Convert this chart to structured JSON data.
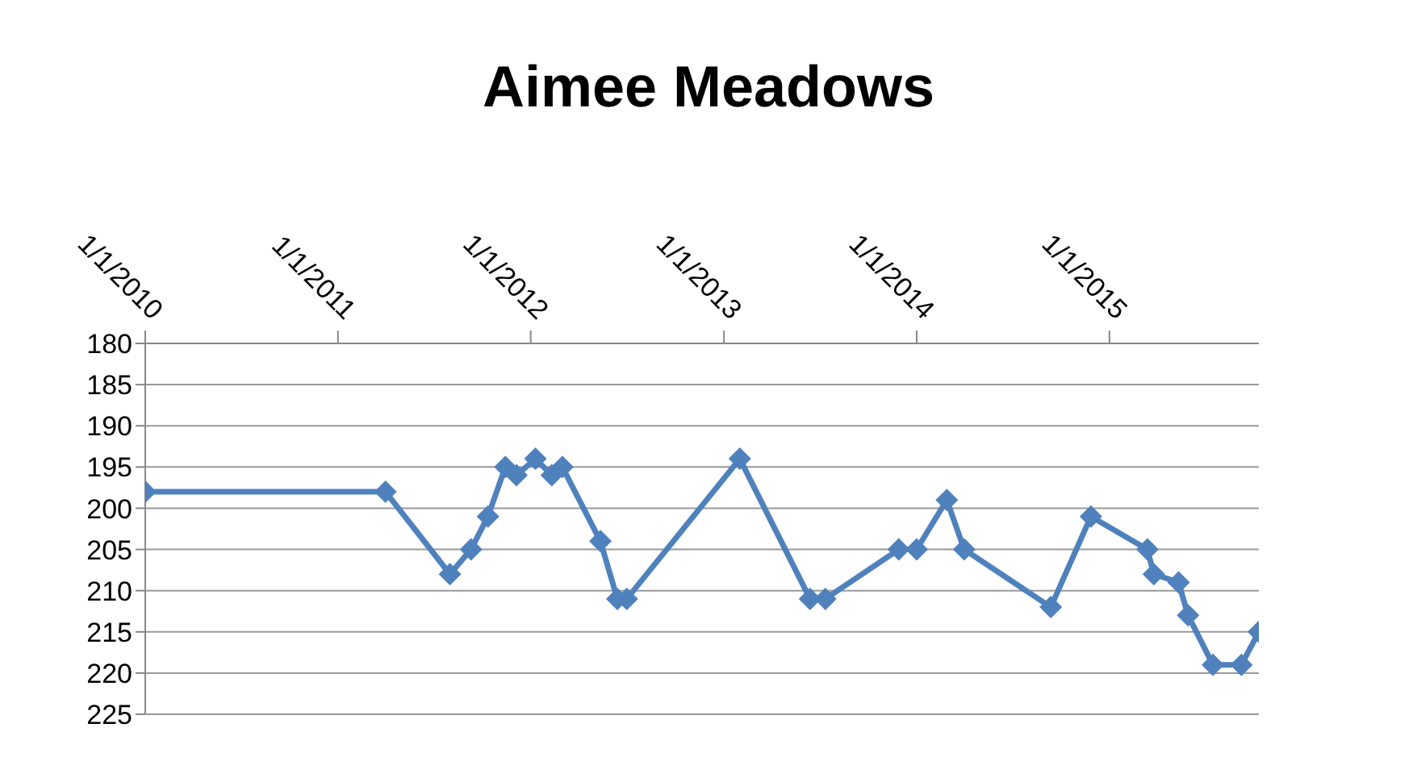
{
  "chart_data": {
    "type": "line",
    "title": "Aimee Meadows",
    "x": [
      "2010-01-01",
      "2011-04-01",
      "2011-08-01",
      "2011-09-10",
      "2011-10-12",
      "2011-11-14",
      "2011-12-05",
      "2012-01-10",
      "2012-02-10",
      "2012-03-01",
      "2012-05-12",
      "2012-06-13",
      "2012-07-01",
      "2013-01-31",
      "2013-06-13",
      "2013-07-12",
      "2013-11-28",
      "2014-01-01",
      "2014-02-27",
      "2014-04-01",
      "2014-09-12",
      "2014-11-27",
      "2015-03-14",
      "2015-03-26",
      "2015-05-12",
      "2015-05-30",
      "2015-07-16",
      "2015-09-08",
      "2015-10-11"
    ],
    "series": [
      {
        "color": "#4f81bd",
        "values": [
          198,
          198,
          208,
          205,
          201,
          195,
          196,
          194,
          196,
          195,
          204,
          211,
          211,
          194,
          211,
          211,
          205,
          205,
          199,
          205,
          212,
          201,
          205,
          208,
          209,
          213,
          219,
          219,
          215
        ]
      }
    ],
    "xlim": [
      "2010-01-01",
      "2015-10-11"
    ],
    "xticks": [
      {
        "value": "2010-01-01",
        "label": "1/1/2010"
      },
      {
        "value": "2011-01-01",
        "label": "1/1/2011"
      },
      {
        "value": "2012-01-01",
        "label": "1/1/2012"
      },
      {
        "value": "2013-01-01",
        "label": "1/1/2013"
      },
      {
        "value": "2014-01-01",
        "label": "1/1/2014"
      },
      {
        "value": "2015-01-01",
        "label": "1/1/2015"
      }
    ],
    "ylim": [
      225,
      180
    ],
    "yticks": [
      180,
      185,
      190,
      195,
      200,
      205,
      210,
      215,
      220,
      225
    ],
    "grid": "y",
    "marker": "diamond"
  }
}
